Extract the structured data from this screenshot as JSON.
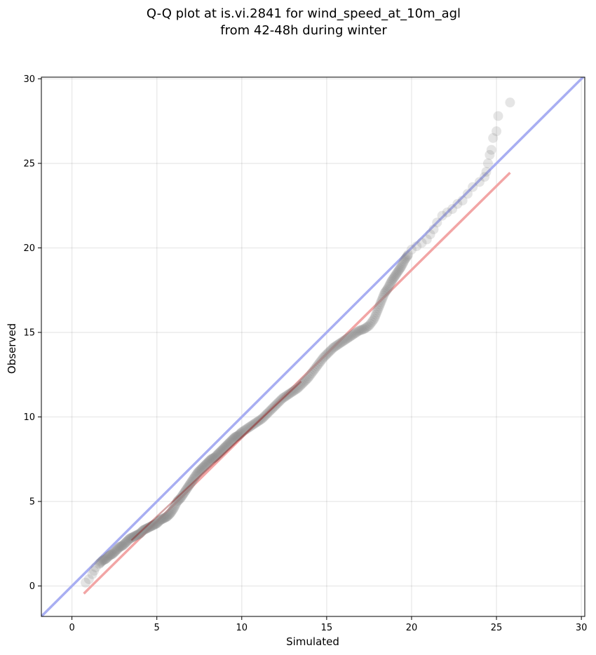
{
  "chart_data": {
    "type": "scatter",
    "title_line1": "Q-Q plot at is.vi.2841 for wind_speed_at_10m_agl",
    "title_line2": "from 42-48h during winter",
    "xlabel": "Simulated",
    "ylabel": "Observed",
    "xlim": [
      -1.8,
      30.2
    ],
    "ylim": [
      -1.8,
      30.1
    ],
    "xticks": [
      "0",
      "5",
      "10",
      "15",
      "20",
      "25",
      "30"
    ],
    "yticks": [
      "0",
      "5",
      "10",
      "15",
      "20",
      "25",
      "30"
    ],
    "grid": true,
    "identity_line": {
      "from": [
        -1.8,
        -1.8
      ],
      "to": [
        30.2,
        30.2
      ],
      "color": "#a8aef2"
    },
    "fit_line": {
      "from": [
        0.7,
        -0.45
      ],
      "to": [
        25.8,
        24.45
      ],
      "color": "#f2a5a5"
    },
    "point_color": "#888888",
    "points": [
      [
        0.8,
        0.2
      ],
      [
        1.0,
        0.4
      ],
      [
        1.2,
        0.7
      ],
      [
        1.3,
        0.9
      ],
      [
        1.4,
        1.1
      ],
      [
        1.6,
        1.3
      ],
      [
        1.8,
        1.5
      ],
      [
        2.0,
        1.6
      ],
      [
        2.2,
        1.8
      ],
      [
        2.4,
        1.9
      ],
      [
        2.6,
        2.1
      ],
      [
        2.8,
        2.3
      ],
      [
        3.0,
        2.4
      ],
      [
        3.2,
        2.6
      ],
      [
        3.4,
        2.8
      ],
      [
        3.6,
        2.9
      ],
      [
        3.8,
        3.0
      ],
      [
        4.0,
        3.1
      ],
      [
        4.2,
        3.3
      ],
      [
        4.4,
        3.4
      ],
      [
        4.6,
        3.5
      ],
      [
        4.8,
        3.6
      ],
      [
        5.0,
        3.7
      ],
      [
        5.2,
        3.9
      ],
      [
        5.4,
        4.0
      ],
      [
        5.6,
        4.1
      ],
      [
        5.8,
        4.3
      ],
      [
        6.0,
        4.6
      ],
      [
        6.2,
        5.0
      ],
      [
        6.4,
        5.2
      ],
      [
        6.6,
        5.5
      ],
      [
        6.8,
        5.8
      ],
      [
        7.0,
        6.1
      ],
      [
        7.2,
        6.4
      ],
      [
        7.4,
        6.7
      ],
      [
        7.6,
        6.9
      ],
      [
        7.8,
        7.1
      ],
      [
        8.0,
        7.3
      ],
      [
        8.2,
        7.5
      ],
      [
        8.4,
        7.6
      ],
      [
        8.6,
        7.8
      ],
      [
        8.8,
        8.0
      ],
      [
        9.0,
        8.2
      ],
      [
        9.2,
        8.4
      ],
      [
        9.4,
        8.6
      ],
      [
        9.6,
        8.8
      ],
      [
        9.8,
        8.9
      ],
      [
        10.0,
        9.1
      ],
      [
        10.3,
        9.3
      ],
      [
        10.6,
        9.5
      ],
      [
        10.9,
        9.7
      ],
      [
        11.2,
        9.9
      ],
      [
        11.5,
        10.2
      ],
      [
        11.8,
        10.5
      ],
      [
        12.1,
        10.8
      ],
      [
        12.4,
        11.1
      ],
      [
        12.7,
        11.3
      ],
      [
        13.0,
        11.5
      ],
      [
        13.3,
        11.7
      ],
      [
        13.6,
        12.0
      ],
      [
        13.9,
        12.3
      ],
      [
        14.2,
        12.7
      ],
      [
        14.5,
        13.1
      ],
      [
        14.8,
        13.5
      ],
      [
        15.1,
        13.8
      ],
      [
        15.4,
        14.1
      ],
      [
        15.7,
        14.3
      ],
      [
        16.0,
        14.5
      ],
      [
        16.3,
        14.7
      ],
      [
        16.6,
        14.9
      ],
      [
        16.9,
        15.1
      ],
      [
        17.2,
        15.2
      ],
      [
        17.5,
        15.4
      ],
      [
        17.8,
        15.8
      ],
      [
        18.0,
        16.3
      ],
      [
        18.2,
        16.8
      ],
      [
        18.4,
        17.3
      ],
      [
        18.6,
        17.6
      ],
      [
        18.8,
        18.0
      ],
      [
        19.0,
        18.3
      ],
      [
        19.2,
        18.6
      ],
      [
        19.4,
        18.9
      ],
      [
        19.6,
        19.3
      ],
      [
        19.8,
        19.6
      ],
      [
        20.0,
        19.9
      ],
      [
        20.3,
        20.1
      ],
      [
        20.6,
        20.3
      ],
      [
        20.9,
        20.5
      ],
      [
        21.1,
        20.8
      ],
      [
        21.3,
        21.1
      ],
      [
        21.5,
        21.5
      ],
      [
        21.8,
        21.9
      ],
      [
        22.1,
        22.1
      ],
      [
        22.4,
        22.3
      ],
      [
        22.7,
        22.6
      ],
      [
        23.0,
        22.8
      ],
      [
        23.3,
        23.2
      ],
      [
        23.6,
        23.6
      ],
      [
        24.0,
        23.9
      ],
      [
        24.3,
        24.2
      ],
      [
        24.4,
        24.5
      ],
      [
        24.5,
        25.0
      ],
      [
        24.6,
        25.5
      ],
      [
        24.7,
        25.8
      ],
      [
        24.8,
        26.5
      ],
      [
        25.0,
        26.9
      ],
      [
        25.1,
        27.8
      ],
      [
        25.8,
        28.6
      ]
    ]
  }
}
